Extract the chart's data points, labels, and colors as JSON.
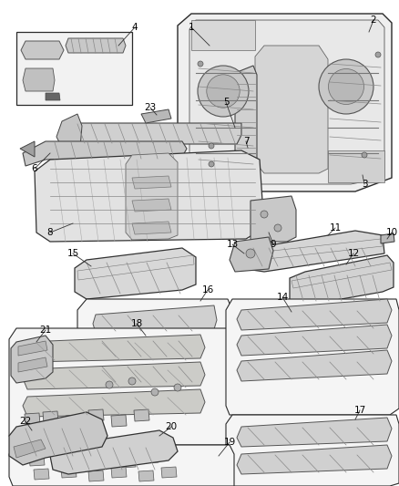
{
  "bg_color": "#f0f0f0",
  "line_color": "#2a2a2a",
  "fill_color": "#d8d8d8",
  "part_fill": "#c8c8c8",
  "dark_color": "#404040"
}
